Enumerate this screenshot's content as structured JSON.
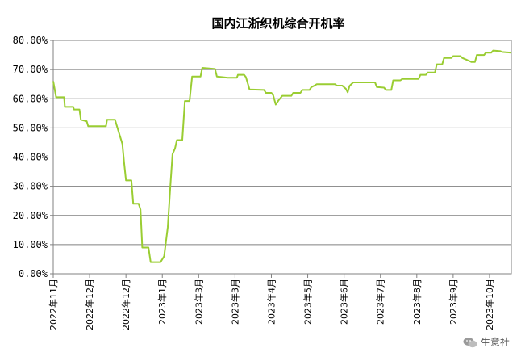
{
  "chart_data": {
    "type": "line",
    "title": "国内江浙织机综合开机率",
    "ylim": [
      0,
      80
    ],
    "y_ticks": [
      "0.00%",
      "10.00%",
      "20.00%",
      "30.00%",
      "40.00%",
      "50.00%",
      "60.00%",
      "70.00%",
      "80.00%"
    ],
    "x_ticks": [
      "2022年11月",
      "2022年12月",
      "2022年12月",
      "2023年1月",
      "2023年3月",
      "2023年3月",
      "2023年4月",
      "2023年5月",
      "2023年6月",
      "2023年7月",
      "2023年8月",
      "2023年9月",
      "2023年10月"
    ],
    "grid": "horizontal",
    "x_range": [
      0,
      12.6
    ],
    "series": [
      {
        "color": "#9ACD32",
        "points": [
          [
            0.0,
            66.0
          ],
          [
            0.08,
            60.5
          ],
          [
            0.3,
            60.5
          ],
          [
            0.32,
            57.2
          ],
          [
            0.55,
            57.2
          ],
          [
            0.57,
            56.3
          ],
          [
            0.72,
            56.3
          ],
          [
            0.76,
            52.8
          ],
          [
            0.92,
            52.3
          ],
          [
            0.96,
            50.6
          ],
          [
            1.45,
            50.6
          ],
          [
            1.48,
            52.8
          ],
          [
            1.7,
            52.8
          ],
          [
            1.78,
            49.5
          ],
          [
            1.9,
            44.5
          ],
          [
            1.95,
            38.0
          ],
          [
            2.0,
            32.0
          ],
          [
            2.15,
            32.0
          ],
          [
            2.2,
            24.0
          ],
          [
            2.35,
            24.0
          ],
          [
            2.4,
            22.0
          ],
          [
            2.45,
            9.0
          ],
          [
            2.62,
            9.0
          ],
          [
            2.68,
            4.0
          ],
          [
            2.95,
            4.0
          ],
          [
            3.05,
            6.0
          ],
          [
            3.15,
            16.0
          ],
          [
            3.22,
            30.0
          ],
          [
            3.28,
            41.0
          ],
          [
            3.35,
            43.0
          ],
          [
            3.4,
            45.8
          ],
          [
            3.55,
            45.8
          ],
          [
            3.62,
            59.2
          ],
          [
            3.75,
            59.2
          ],
          [
            3.82,
            67.6
          ],
          [
            4.05,
            67.6
          ],
          [
            4.1,
            70.6
          ],
          [
            4.45,
            70.2
          ],
          [
            4.5,
            67.6
          ],
          [
            4.8,
            67.2
          ],
          [
            5.05,
            67.2
          ],
          [
            5.08,
            68.2
          ],
          [
            5.25,
            68.2
          ],
          [
            5.3,
            67.4
          ],
          [
            5.4,
            63.2
          ],
          [
            5.8,
            63.0
          ],
          [
            5.85,
            62.0
          ],
          [
            6.0,
            62.0
          ],
          [
            6.05,
            61.2
          ],
          [
            6.12,
            58.0
          ],
          [
            6.2,
            59.5
          ],
          [
            6.3,
            61.0
          ],
          [
            6.55,
            61.0
          ],
          [
            6.6,
            62.0
          ],
          [
            6.8,
            62.0
          ],
          [
            6.85,
            63.0
          ],
          [
            7.05,
            63.0
          ],
          [
            7.1,
            64.0
          ],
          [
            7.2,
            64.6
          ],
          [
            7.25,
            65.0
          ],
          [
            7.75,
            65.0
          ],
          [
            7.8,
            64.5
          ],
          [
            7.95,
            64.5
          ],
          [
            8.05,
            63.4
          ],
          [
            8.1,
            62.2
          ],
          [
            8.15,
            64.4
          ],
          [
            8.25,
            65.6
          ],
          [
            8.85,
            65.6
          ],
          [
            8.9,
            64.0
          ],
          [
            9.1,
            63.8
          ],
          [
            9.15,
            63.0
          ],
          [
            9.3,
            63.0
          ],
          [
            9.35,
            66.3
          ],
          [
            9.55,
            66.3
          ],
          [
            9.6,
            66.8
          ],
          [
            10.05,
            66.8
          ],
          [
            10.1,
            68.2
          ],
          [
            10.25,
            68.2
          ],
          [
            10.3,
            69.0
          ],
          [
            10.5,
            69.0
          ],
          [
            10.55,
            71.8
          ],
          [
            10.7,
            71.8
          ],
          [
            10.75,
            74.0
          ],
          [
            10.95,
            74.0
          ],
          [
            11.0,
            74.6
          ],
          [
            11.2,
            74.6
          ],
          [
            11.25,
            74.0
          ],
          [
            11.4,
            73.2
          ],
          [
            11.5,
            72.6
          ],
          [
            11.6,
            72.6
          ],
          [
            11.65,
            75.0
          ],
          [
            11.85,
            75.0
          ],
          [
            11.9,
            75.8
          ],
          [
            12.05,
            75.8
          ],
          [
            12.1,
            76.5
          ],
          [
            12.3,
            76.3
          ],
          [
            12.35,
            76.0
          ],
          [
            12.6,
            75.8
          ]
        ]
      }
    ]
  },
  "watermark": {
    "text": "生意社"
  }
}
